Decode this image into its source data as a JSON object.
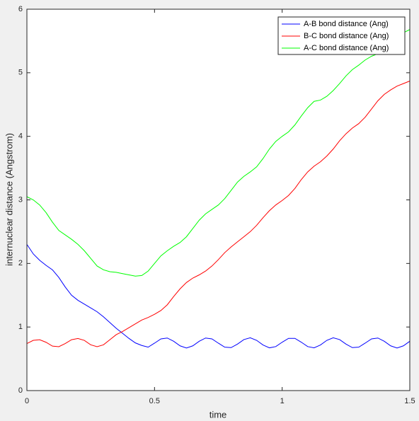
{
  "chart_data": {
    "type": "line",
    "xlabel": "time",
    "ylabel": "internuclear distance (Angstrom)",
    "x": [
      0,
      0.025,
      0.05,
      0.075,
      0.1,
      0.125,
      0.15,
      0.175,
      0.2,
      0.225,
      0.25,
      0.275,
      0.3,
      0.325,
      0.35,
      0.375,
      0.4,
      0.425,
      0.45,
      0.475,
      0.5,
      0.525,
      0.55,
      0.575,
      0.6,
      0.625,
      0.65,
      0.675,
      0.7,
      0.725,
      0.75,
      0.775,
      0.8,
      0.825,
      0.85,
      0.875,
      0.9,
      0.925,
      0.95,
      0.975,
      1,
      1.025,
      1.05,
      1.075,
      1.1,
      1.125,
      1.15,
      1.175,
      1.2,
      1.225,
      1.25,
      1.275,
      1.3,
      1.325,
      1.35,
      1.375,
      1.4,
      1.425,
      1.45,
      1.475,
      1.5
    ],
    "series": [
      {
        "name": "A-B bond distance (Ang)",
        "color": "#0000ff",
        "values": [
          2.3,
          2.15,
          2.05,
          1.97,
          1.9,
          1.78,
          1.63,
          1.5,
          1.42,
          1.36,
          1.3,
          1.24,
          1.16,
          1.07,
          0.98,
          0.9,
          0.82,
          0.75,
          0.71,
          0.683,
          0.746,
          0.813,
          0.827,
          0.776,
          0.704,
          0.67,
          0.704,
          0.776,
          0.827,
          0.813,
          0.746,
          0.683,
          0.676,
          0.731,
          0.802,
          0.83,
          0.79,
          0.717,
          0.672,
          0.692,
          0.761,
          0.821,
          0.821,
          0.761,
          0.692,
          0.672,
          0.717,
          0.79,
          0.83,
          0.802,
          0.731,
          0.676,
          0.683,
          0.746,
          0.813,
          0.827,
          0.776,
          0.704,
          0.67,
          0.704,
          0.776
        ]
      },
      {
        "name": "B-C bond distance (Ang)",
        "color": "#ff0000",
        "values": [
          0.74,
          0.79,
          0.8,
          0.76,
          0.7,
          0.69,
          0.74,
          0.8,
          0.82,
          0.79,
          0.72,
          0.69,
          0.72,
          0.8,
          0.88,
          0.93,
          0.99,
          1.05,
          1.11,
          1.15,
          1.2,
          1.26,
          1.35,
          1.48,
          1.6,
          1.7,
          1.77,
          1.82,
          1.88,
          1.96,
          2.06,
          2.17,
          2.26,
          2.34,
          2.42,
          2.5,
          2.6,
          2.72,
          2.83,
          2.92,
          2.99,
          3.07,
          3.18,
          3.32,
          3.44,
          3.53,
          3.6,
          3.69,
          3.8,
          3.93,
          4.04,
          4.13,
          4.2,
          4.3,
          4.43,
          4.56,
          4.66,
          4.73,
          4.79,
          4.83,
          4.87
        ]
      },
      {
        "name": "A-C bond distance (Ang)",
        "color": "#00ff00",
        "values": [
          3.05,
          3.0,
          2.92,
          2.8,
          2.65,
          2.52,
          2.45,
          2.38,
          2.3,
          2.2,
          2.08,
          1.96,
          1.9,
          1.87,
          1.86,
          1.84,
          1.82,
          1.8,
          1.81,
          1.88,
          2.0,
          2.12,
          2.2,
          2.27,
          2.33,
          2.42,
          2.55,
          2.68,
          2.78,
          2.85,
          2.92,
          3.02,
          3.15,
          3.28,
          3.37,
          3.44,
          3.52,
          3.65,
          3.8,
          3.92,
          4.0,
          4.07,
          4.18,
          4.32,
          4.45,
          4.55,
          4.57,
          4.63,
          4.72,
          4.83,
          4.95,
          5.05,
          5.12,
          5.2,
          5.26,
          5.3,
          5.36,
          5.45,
          5.55,
          5.63,
          5.68
        ]
      }
    ],
    "xlim": [
      0,
      1.5
    ],
    "ylim": [
      0,
      6
    ],
    "xticks": [
      0,
      0.5,
      1,
      1.5
    ],
    "yticks": [
      0,
      1,
      2,
      3,
      4,
      5,
      6
    ],
    "legend": "upper right"
  }
}
